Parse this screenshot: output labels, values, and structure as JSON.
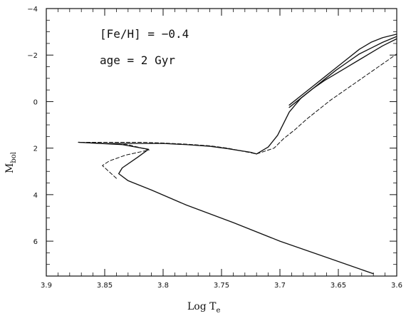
{
  "chart_data": {
    "type": "line",
    "title": "",
    "xlabel": "Log T",
    "xlabel_sub": "e",
    "ylabel": "M",
    "ylabel_sub": "bol",
    "xlim": [
      3.9,
      3.6
    ],
    "ylim": [
      7.5,
      -4
    ],
    "x_ticks": [
      3.9,
      3.85,
      3.8,
      3.75,
      3.7,
      3.65,
      3.6
    ],
    "x_tick_labels": [
      "3.9",
      "3.85",
      "3.8",
      "3.75",
      "3.7",
      "3.65",
      "3.6"
    ],
    "y_ticks": [
      -4,
      -2,
      0,
      2,
      4,
      6
    ],
    "y_tick_labels": [
      "−4",
      "−2",
      "0",
      "2",
      "4",
      "6"
    ],
    "annotations": [
      "[Fe/H] = −0.4",
      "age = 2 Gyr"
    ],
    "grid": false,
    "series": [
      {
        "style": "solid",
        "x": [
          3.62,
          3.66,
          3.7,
          3.74,
          3.78,
          3.81,
          3.83,
          3.838,
          3.835,
          3.822,
          3.8125,
          3.835,
          3.8725,
          3.85,
          3.82,
          3.8,
          3.78,
          3.76,
          3.745,
          3.735,
          3.725,
          3.72,
          3.71,
          3.702,
          3.697,
          3.692,
          3.682,
          3.672,
          3.662,
          3.652,
          3.642,
          3.632,
          3.622,
          3.612,
          3.6
        ],
        "y": [
          7.4,
          6.7,
          6.0,
          5.2,
          4.45,
          3.8,
          3.4,
          3.1,
          2.85,
          2.4,
          2.05,
          1.85,
          1.75,
          1.8,
          1.8,
          1.8,
          1.85,
          1.92,
          2.02,
          2.1,
          2.18,
          2.25,
          1.95,
          1.45,
          0.95,
          0.45,
          -0.15,
          -0.55,
          -0.9,
          -1.2,
          -1.5,
          -1.8,
          -2.1,
          -2.4,
          -2.7
        ]
      },
      {
        "style": "solid",
        "x": [
          3.692,
          3.682,
          3.672,
          3.662,
          3.652,
          3.642,
          3.632,
          3.622,
          3.612,
          3.6
        ],
        "y": [
          0.15,
          -0.25,
          -0.65,
          -1.05,
          -1.45,
          -1.85,
          -2.25,
          -2.55,
          -2.75,
          -2.9
        ]
      },
      {
        "style": "solid",
        "x": [
          3.692,
          3.682,
          3.672,
          3.662,
          3.652,
          3.642,
          3.632,
          3.622,
          3.612,
          3.6
        ],
        "y": [
          0.25,
          -0.15,
          -0.55,
          -0.95,
          -1.35,
          -1.7,
          -2.05,
          -2.3,
          -2.55,
          -2.8
        ]
      },
      {
        "style": "dashed",
        "x": [
          3.84,
          3.852,
          3.846,
          3.832,
          3.812,
          3.83,
          3.8725,
          3.85,
          3.82,
          3.8,
          3.78,
          3.76,
          3.745,
          3.735,
          3.725,
          3.72,
          3.705,
          3.697,
          3.687,
          3.677,
          3.667,
          3.657,
          3.647,
          3.637,
          3.627,
          3.617,
          3.607,
          3.6
        ],
        "y": [
          3.3,
          2.75,
          2.55,
          2.3,
          2.08,
          1.85,
          1.75,
          1.75,
          1.75,
          1.78,
          1.83,
          1.9,
          2.0,
          2.1,
          2.2,
          2.25,
          2.0,
          1.6,
          1.2,
          0.75,
          0.35,
          -0.05,
          -0.4,
          -0.75,
          -1.1,
          -1.45,
          -1.8,
          -2.05
        ]
      }
    ]
  }
}
